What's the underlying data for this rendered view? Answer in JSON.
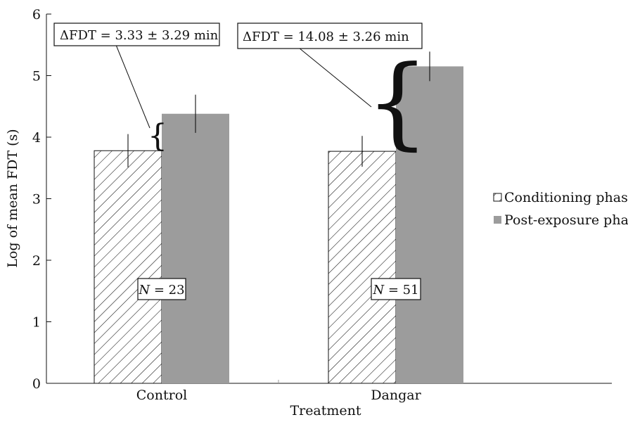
{
  "chart_data": {
    "type": "bar",
    "title": "",
    "xlabel": "Treatment",
    "ylabel": "Log of mean FDT (s)",
    "ylim": [
      0,
      6
    ],
    "yticks": [
      "0",
      "1",
      "2",
      "3",
      "4",
      "5",
      "6"
    ],
    "categories": [
      "Control",
      "Dangar"
    ],
    "series": [
      {
        "name": "Conditioning phase",
        "pattern": "diagonal-hatch",
        "color": "#ffffff",
        "values": [
          3.78,
          3.77
        ],
        "error": [
          0.27,
          0.25
        ]
      },
      {
        "name": "Post-exposure phase",
        "color": "#9c9c9c",
        "values": [
          4.38,
          5.15
        ],
        "error": [
          0.31,
          0.24
        ]
      }
    ],
    "grid": false,
    "legend": "right",
    "annotations": [
      {
        "category": "Control",
        "prefix": "ΔFDT = ",
        "value": "3.33 ± 3.29 min"
      },
      {
        "category": "Dangar",
        "prefix": "ΔFDT = ",
        "value": "14.08  ± 3.26 min"
      }
    ],
    "sample_sizes": [
      {
        "category": "Control",
        "label": "N",
        "value": " = 23"
      },
      {
        "category": "Dangar",
        "label": "N",
        "value": " = 51"
      }
    ]
  }
}
